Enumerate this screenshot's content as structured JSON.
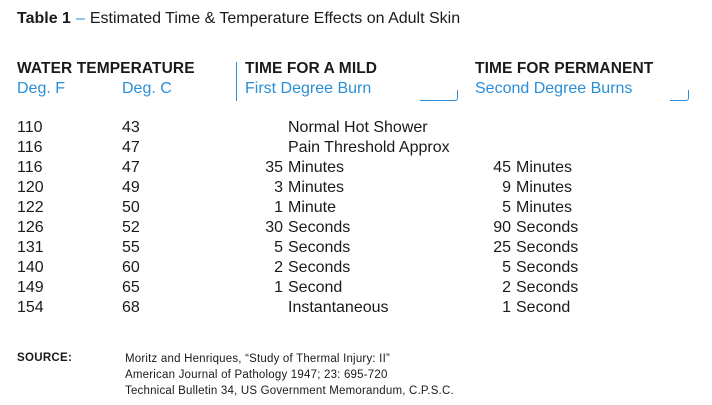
{
  "title": {
    "number": "Table 1",
    "separator": "–",
    "text": "Estimated Time & Temperature Effects on Adult Skin"
  },
  "headers": {
    "water_temperature": "WATER TEMPERATURE",
    "deg_f": "Deg. F",
    "deg_c": "Deg. C",
    "mild_title": "TIME FOR A MILD",
    "mild_sub": "First Degree Burn",
    "perm_title": "TIME FOR PERMANENT",
    "perm_sub": "Second Degree Burns"
  },
  "rows": [
    {
      "f": "110",
      "c": "43",
      "mild_num": "",
      "mild_unit": "Normal Hot Shower",
      "perm_num": "",
      "perm_unit": ""
    },
    {
      "f": "116",
      "c": "47",
      "mild_num": "",
      "mild_unit": "Pain Threshold Approx",
      "perm_num": "",
      "perm_unit": ""
    },
    {
      "f": "116",
      "c": "47",
      "mild_num": "35",
      "mild_unit": "Minutes",
      "perm_num": "45",
      "perm_unit": "Minutes"
    },
    {
      "f": "120",
      "c": "49",
      "mild_num": "3",
      "mild_unit": "Minutes",
      "perm_num": "9",
      "perm_unit": "Minutes"
    },
    {
      "f": "122",
      "c": "50",
      "mild_num": "1",
      "mild_unit": "Minute",
      "perm_num": "5",
      "perm_unit": "Minutes"
    },
    {
      "f": "126",
      "c": "52",
      "mild_num": "30",
      "mild_unit": "Seconds",
      "perm_num": "90",
      "perm_unit": "Seconds"
    },
    {
      "f": "131",
      "c": "55",
      "mild_num": "5",
      "mild_unit": "Seconds",
      "perm_num": "25",
      "perm_unit": "Seconds"
    },
    {
      "f": "140",
      "c": "60",
      "mild_num": "2",
      "mild_unit": "Seconds",
      "perm_num": "5",
      "perm_unit": "Seconds"
    },
    {
      "f": "149",
      "c": "65",
      "mild_num": "1",
      "mild_unit": "Second",
      "perm_num": "2",
      "perm_unit": "Seconds"
    },
    {
      "f": "154",
      "c": "68",
      "mild_num": "",
      "mild_unit": "Instantaneous",
      "perm_num": "1",
      "perm_unit": "Second"
    }
  ],
  "source": {
    "label": "SOURCE:",
    "lines": [
      "Moritz and Henriques, “Study of Thermal Injury:  II”",
      "American Journal of Pathology 1947; 23: 695-720",
      "Technical Bulletin 34, US Government Memorandum, C.P.S.C."
    ]
  },
  "colors": {
    "accent": "#2a8fd8",
    "text": "#1a1a1a"
  }
}
